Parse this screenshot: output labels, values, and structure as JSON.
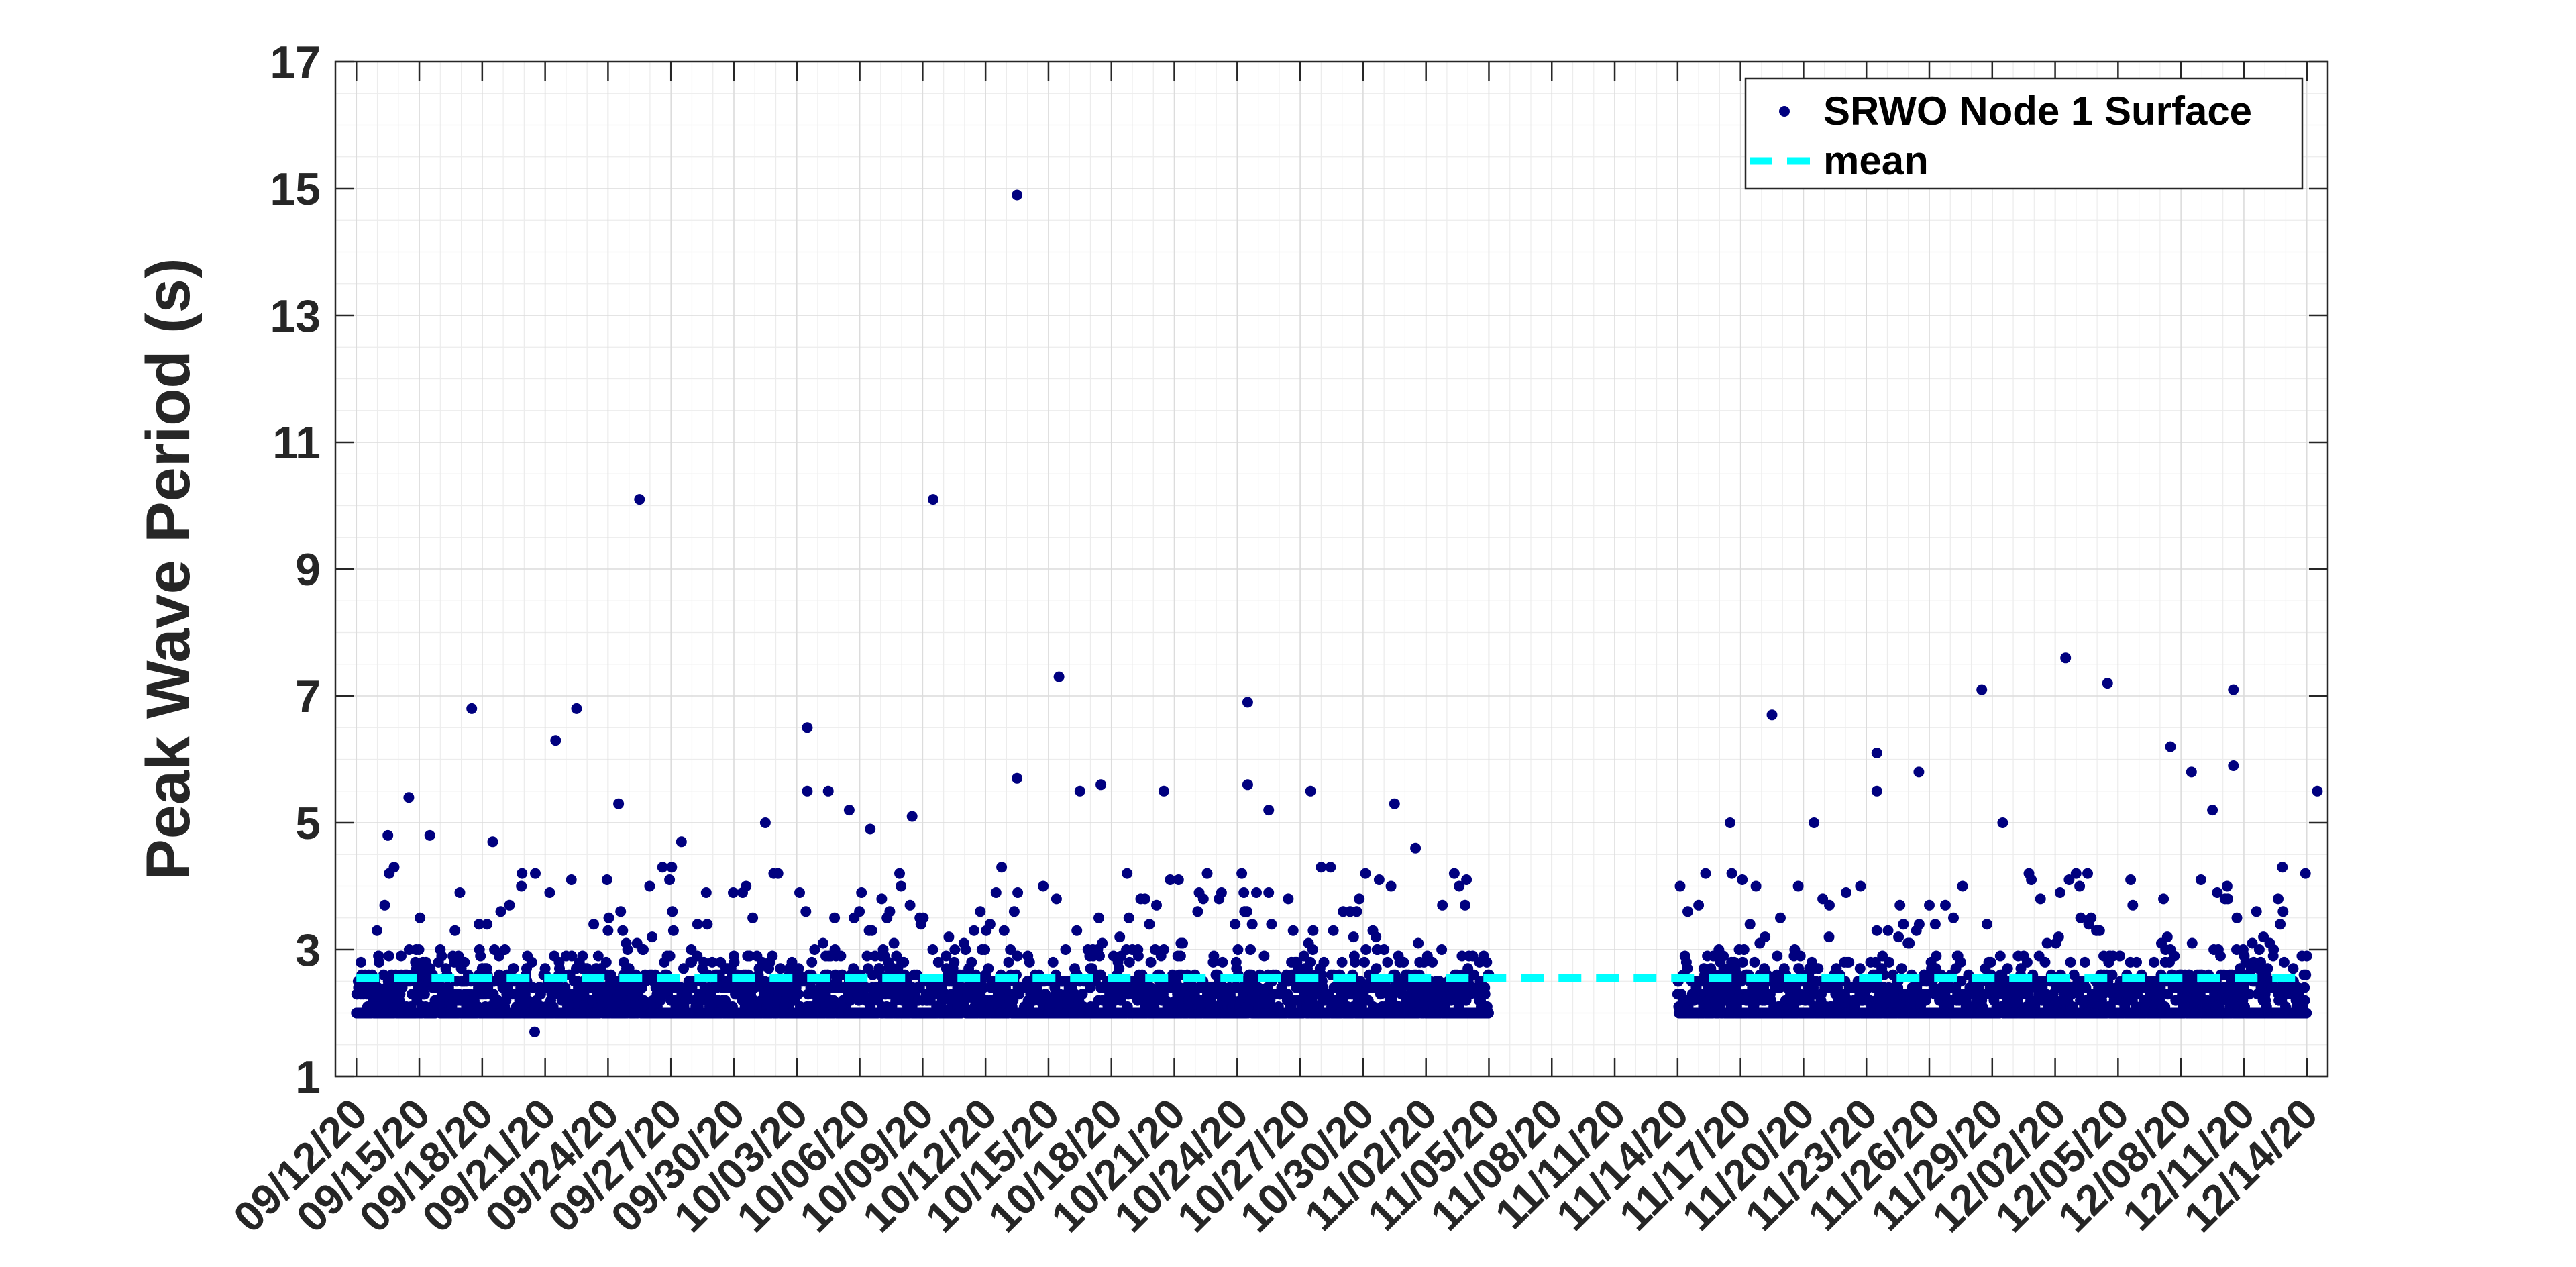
{
  "chart_data": {
    "type": "scatter",
    "title": "",
    "xlabel": "",
    "ylabel": "Peak Wave Period (s)",
    "xlim": [
      "09/11/20",
      "12/15/20"
    ],
    "ylim": [
      1,
      17
    ],
    "y_ticks": [
      1,
      3,
      5,
      7,
      9,
      11,
      13,
      15,
      17
    ],
    "x_tick_labels": [
      "09/12/20",
      "09/15/20",
      "09/18/20",
      "09/21/20",
      "09/24/20",
      "09/27/20",
      "09/30/20",
      "10/03/20",
      "10/06/20",
      "10/09/20",
      "10/12/20",
      "10/15/20",
      "10/18/20",
      "10/21/20",
      "10/24/20",
      "10/27/20",
      "10/30/20",
      "11/02/20",
      "11/05/20",
      "11/08/20",
      "11/11/20",
      "11/14/20",
      "11/17/20",
      "11/20/20",
      "11/23/20",
      "11/26/20",
      "11/29/20",
      "12/02/20",
      "12/05/20",
      "12/08/20",
      "12/11/20",
      "12/14/20"
    ],
    "grid": true,
    "minor_grid": true,
    "legend_position": "top-right",
    "series": [
      {
        "name": "SRWO Node 1 Surface",
        "marker": "dot",
        "color": "#00007f",
        "segments": [
          {
            "start": "09/12/20",
            "end": "11/05/20"
          },
          {
            "start": "11/14/20",
            "end": "12/14/20"
          }
        ],
        "typical_range": [
          2.0,
          3.0
        ],
        "outliers": [
          {
            "x": "09/13/20",
            "y": 4.8
          },
          {
            "x": "09/14/20",
            "y": 5.4
          },
          {
            "x": "09/15/20",
            "y": 4.8
          },
          {
            "x": "09/17/20",
            "y": 6.8
          },
          {
            "x": "09/18/20",
            "y": 4.7
          },
          {
            "x": "09/20/20",
            "y": 1.7
          },
          {
            "x": "09/21/20",
            "y": 6.3
          },
          {
            "x": "09/22/20",
            "y": 6.8
          },
          {
            "x": "09/24/20",
            "y": 5.3
          },
          {
            "x": "09/25/20",
            "y": 10.1
          },
          {
            "x": "09/27/20",
            "y": 4.7
          },
          {
            "x": "10/01/20",
            "y": 5.0
          },
          {
            "x": "10/03/20",
            "y": 6.5
          },
          {
            "x": "10/03/20",
            "y": 5.5
          },
          {
            "x": "10/04/20",
            "y": 5.5
          },
          {
            "x": "10/05/20",
            "y": 5.2
          },
          {
            "x": "10/06/20",
            "y": 4.9
          },
          {
            "x": "10/08/20",
            "y": 5.1
          },
          {
            "x": "10/09/20",
            "y": 10.1
          },
          {
            "x": "10/13/20",
            "y": 5.7
          },
          {
            "x": "10/13/20",
            "y": 14.9
          },
          {
            "x": "10/15/20",
            "y": 7.3
          },
          {
            "x": "10/16/20",
            "y": 5.5
          },
          {
            "x": "10/17/20",
            "y": 5.6
          },
          {
            "x": "10/20/20",
            "y": 5.5
          },
          {
            "x": "10/24/20",
            "y": 6.9
          },
          {
            "x": "10/24/20",
            "y": 5.6
          },
          {
            "x": "10/25/20",
            "y": 5.2
          },
          {
            "x": "10/27/20",
            "y": 5.5
          },
          {
            "x": "10/31/20",
            "y": 5.3
          },
          {
            "x": "11/01/20",
            "y": 4.6
          },
          {
            "x": "11/16/20",
            "y": 5.0
          },
          {
            "x": "11/18/20",
            "y": 6.7
          },
          {
            "x": "11/20/20",
            "y": 5.0
          },
          {
            "x": "11/23/20",
            "y": 6.1
          },
          {
            "x": "11/23/20",
            "y": 5.5
          },
          {
            "x": "11/25/20",
            "y": 5.8
          },
          {
            "x": "11/28/20",
            "y": 7.1
          },
          {
            "x": "11/29/20",
            "y": 5.0
          },
          {
            "x": "12/02/20",
            "y": 7.6
          },
          {
            "x": "12/04/20",
            "y": 7.2
          },
          {
            "x": "12/07/20",
            "y": 6.2
          },
          {
            "x": "12/08/20",
            "y": 5.8
          },
          {
            "x": "12/09/20",
            "y": 5.2
          },
          {
            "x": "12/10/20",
            "y": 7.1
          },
          {
            "x": "12/10/20",
            "y": 5.9
          },
          {
            "x": "12/14/20",
            "y": 5.5
          }
        ]
      },
      {
        "name": "mean",
        "style": "dashed",
        "color": "#00ffff",
        "x": [
          "09/12/20",
          "12/14/20"
        ],
        "y": [
          2.55,
          2.55
        ]
      }
    ]
  }
}
